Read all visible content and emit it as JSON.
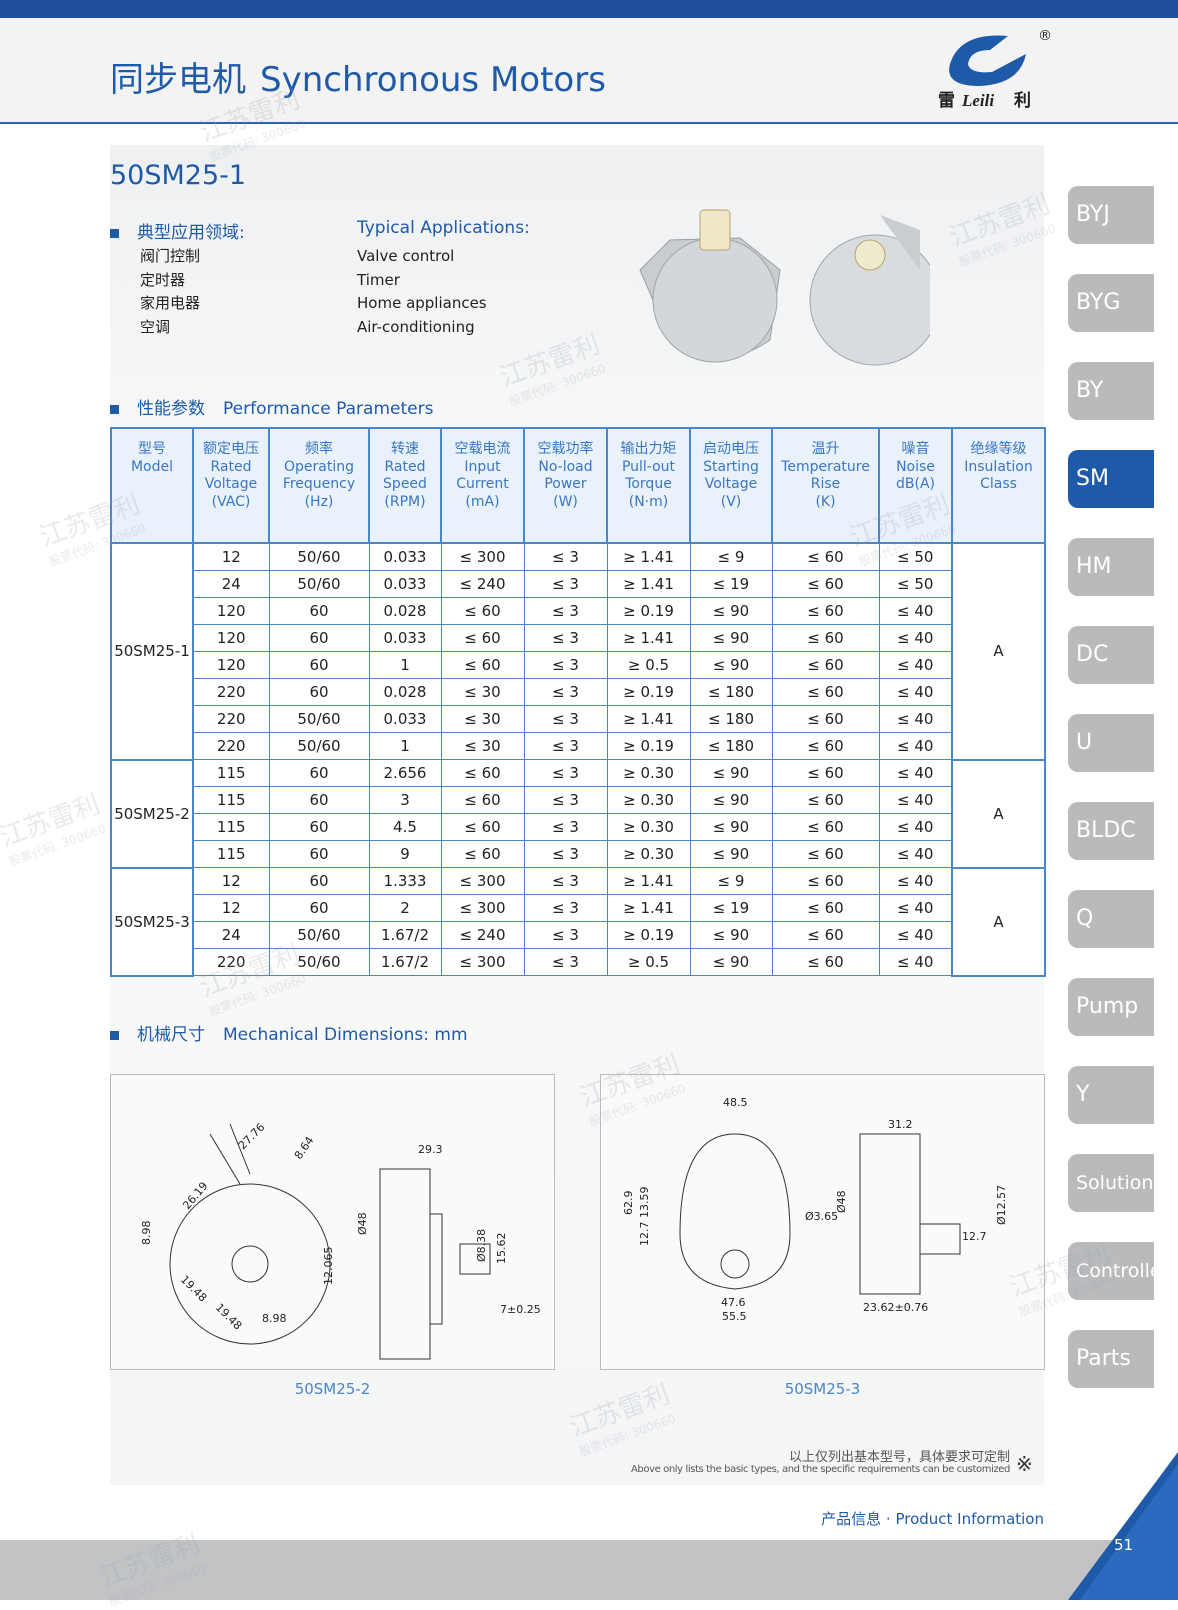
{
  "header": {
    "title_cn": "同步电机",
    "title_en": "Synchronous Motors",
    "logo_cn_left": "雷",
    "logo_en": "Leili",
    "logo_cn_right": "利",
    "registered": "®"
  },
  "watermark": {
    "name": "江苏雷利",
    "code": "股票代码: 300660"
  },
  "product": {
    "model": "50SM25-1"
  },
  "applications": {
    "heading_cn": "典型应用领域:",
    "heading_en": "Typical Applications:",
    "items_cn": [
      "阀门控制",
      "定时器",
      "家用电器",
      "空调"
    ],
    "items_en": [
      "Valve control",
      "Timer",
      "Home appliances",
      "Air-conditioning"
    ]
  },
  "performance": {
    "heading_cn": "性能参数",
    "heading_en": "Performance Parameters"
  },
  "table": {
    "headers": [
      [
        "型号",
        "Model"
      ],
      [
        "额定电压",
        "Rated",
        "Voltage",
        "(VAC)"
      ],
      [
        "频率",
        "Operating",
        "Frequency",
        "(Hz)"
      ],
      [
        "转速",
        "Rated",
        "Speed",
        "(RPM)"
      ],
      [
        "空载电流",
        "Input",
        "Current",
        "(mA)"
      ],
      [
        "空载功率",
        "No-load",
        "Power",
        "(W)"
      ],
      [
        "输出力矩",
        "Pull-out",
        "Torque",
        "(N·m)"
      ],
      [
        "启动电压",
        "Starting",
        "Voltage",
        "(V)"
      ],
      [
        "温升",
        "Temperature",
        "Rise",
        "(K)"
      ],
      [
        "噪音",
        "Noise",
        "dB(A)"
      ],
      [
        "绝缘等级",
        "Insulation",
        "Class"
      ]
    ],
    "groups": [
      {
        "model": "50SM25-1",
        "insulation": "A",
        "rows": [
          [
            "12",
            "50/60",
            "0.033",
            "≤ 300",
            "≤ 3",
            "≥ 1.41",
            "≤ 9",
            "≤ 60",
            "≤ 50"
          ],
          [
            "24",
            "50/60",
            "0.033",
            "≤ 240",
            "≤ 3",
            "≥ 1.41",
            "≤ 19",
            "≤ 60",
            "≤ 50"
          ],
          [
            "120",
            "60",
            "0.028",
            "≤ 60",
            "≤ 3",
            "≥ 0.19",
            "≤ 90",
            "≤ 60",
            "≤ 40"
          ],
          [
            "120",
            "60",
            "0.033",
            "≤ 60",
            "≤ 3",
            "≥ 1.41",
            "≤ 90",
            "≤ 60",
            "≤ 40"
          ],
          [
            "120",
            "60",
            "1",
            "≤ 60",
            "≤ 3",
            "≥ 0.5",
            "≤ 90",
            "≤ 60",
            "≤ 40"
          ],
          [
            "220",
            "60",
            "0.028",
            "≤ 30",
            "≤ 3",
            "≥ 0.19",
            "≤ 180",
            "≤ 60",
            "≤ 40"
          ],
          [
            "220",
            "50/60",
            "0.033",
            "≤ 30",
            "≤ 3",
            "≥ 1.41",
            "≤ 180",
            "≤ 60",
            "≤ 40"
          ],
          [
            "220",
            "50/60",
            "1",
            "≤ 30",
            "≤ 3",
            "≥ 0.19",
            "≤ 180",
            "≤ 60",
            "≤ 40"
          ]
        ]
      },
      {
        "model": "50SM25-2",
        "insulation": "A",
        "rows": [
          [
            "115",
            "60",
            "2.656",
            "≤ 60",
            "≤ 3",
            "≥ 0.30",
            "≤ 90",
            "≤ 60",
            "≤ 40"
          ],
          [
            "115",
            "60",
            "3",
            "≤ 60",
            "≤ 3",
            "≥ 0.30",
            "≤ 90",
            "≤ 60",
            "≤ 40"
          ],
          [
            "115",
            "60",
            "4.5",
            "≤ 60",
            "≤ 3",
            "≥ 0.30",
            "≤ 90",
            "≤ 60",
            "≤ 40"
          ],
          [
            "115",
            "60",
            "9",
            "≤ 60",
            "≤ 3",
            "≥ 0.30",
            "≤ 90",
            "≤ 60",
            "≤ 40"
          ]
        ]
      },
      {
        "model": "50SM25-3",
        "insulation": "A",
        "rows": [
          [
            "12",
            "60",
            "1.333",
            "≤ 300",
            "≤ 3",
            "≥ 1.41",
            "≤ 9",
            "≤ 60",
            "≤ 40"
          ],
          [
            "12",
            "60",
            "2",
            "≤ 300",
            "≤ 3",
            "≥ 1.41",
            "≤ 19",
            "≤ 60",
            "≤ 40"
          ],
          [
            "24",
            "50/60",
            "1.67/2",
            "≤ 240",
            "≤ 3",
            "≥ 0.19",
            "≤ 90",
            "≤ 60",
            "≤ 40"
          ],
          [
            "220",
            "50/60",
            "1.67/2",
            "≤ 300",
            "≤ 3",
            "≥ 0.5",
            "≤ 90",
            "≤ 60",
            "≤ 40"
          ]
        ]
      }
    ]
  },
  "dimensions": {
    "heading_cn": "机械尺寸",
    "heading_en": "Mechanical Dimensions: mm",
    "drawings": [
      {
        "caption": "50SM25-2",
        "labels": [
          "27.76",
          "8.64",
          "29.3",
          "26.19",
          "8.98",
          "Ø48",
          "19.48",
          "19.48",
          "8.98",
          "12.065",
          "Ø8.38",
          "15.62",
          "7±0.25"
        ]
      },
      {
        "caption": "50SM25-3",
        "labels": [
          "48.5",
          "31.2",
          "62.9",
          "13.59",
          "12.7",
          "Ø3.65",
          "Ø48",
          "Ø12.57",
          "12.7",
          "47.6",
          "55.5",
          "23.62±0.76"
        ]
      }
    ]
  },
  "footer": {
    "note_cn": "以上仅列出基本型号，具体要求可定制",
    "note_en": "Above only lists the basic types, and the specific requirements can be customized",
    "note_mark": "※",
    "section": "产品信息 · Product Information",
    "page": "51"
  },
  "nav": {
    "tabs": [
      "BYJ",
      "BYG",
      "BY",
      "SM",
      "HM",
      "DC",
      "U",
      "BLDC",
      "Q",
      "Pump",
      "Y",
      "Solution",
      "Controller",
      "Parts"
    ],
    "active_index": 3
  }
}
